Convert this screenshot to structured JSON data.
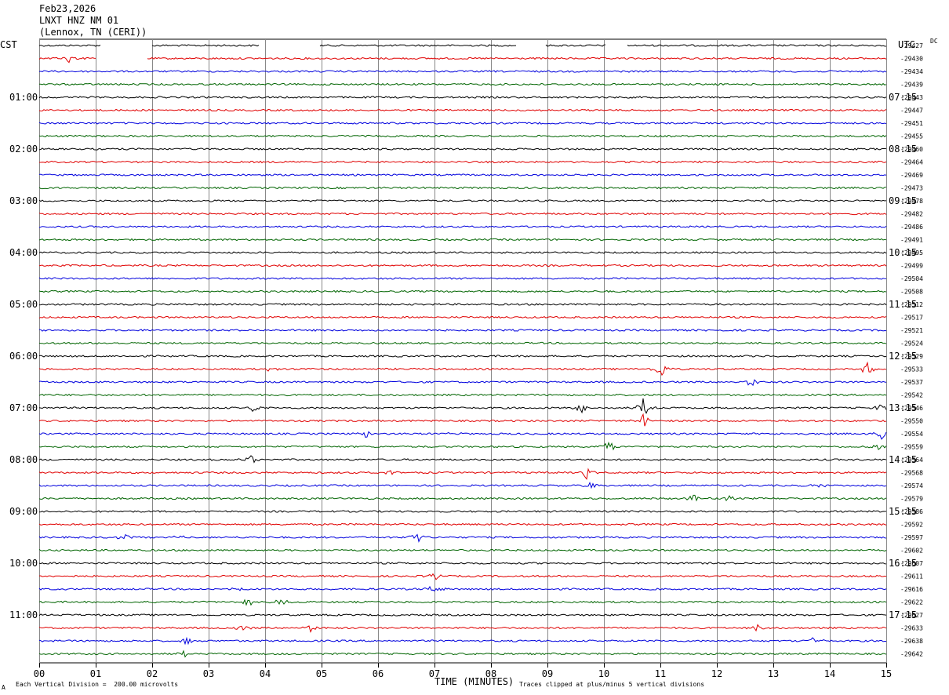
{
  "header": {
    "date": "Feb23,2026",
    "station": "LNXT HNZ NM 01",
    "location": "(Lennox, TN (CERI))"
  },
  "left_tz": "CST",
  "right_tz": "UTC",
  "dc_label": "DC",
  "footer": {
    "scale_note": "Each Vertical Division =  200.00 microvolts",
    "clip_note": "Traces clipped at plus/minus 5 vertical divisions",
    "corner_mark": "A"
  },
  "colors": {
    "trace_cycle": [
      "#000000",
      "#e00000",
      "#0000dd",
      "#006400"
    ],
    "grid": "#888888"
  },
  "chart_data": {
    "type": "line",
    "xlabel": "TIME (MINUTES)",
    "xlim": [
      0,
      15
    ],
    "x_ticks": [
      "00",
      "01",
      "02",
      "03",
      "04",
      "05",
      "06",
      "07",
      "08",
      "09",
      "10",
      "11",
      "12",
      "13",
      "14",
      "15"
    ],
    "left_hour_labels": [
      "01:00",
      "02:00",
      "03:00",
      "04:00",
      "05:00",
      "06:00",
      "07:00",
      "08:00",
      "09:00",
      "10:00",
      "11:00"
    ],
    "right_hour_labels": [
      "07:15",
      "08:15",
      "09:15",
      "10:15",
      "11:15",
      "12:15",
      "13:15",
      "14:15",
      "15:15",
      "16:15",
      "17:15"
    ],
    "dc_offsets": [
      "-29427",
      "-29430",
      "-29434",
      "-29439",
      "-29443",
      "-29447",
      "-29451",
      "-29455",
      "-29460",
      "-29464",
      "-29469",
      "-29473",
      "-29478",
      "-29482",
      "-29486",
      "-29491",
      "-29495",
      "-29499",
      "-29504",
      "-29508",
      "-29512",
      "-29517",
      "-29521",
      "-29524",
      "-29529",
      "-29533",
      "-29537",
      "-29542",
      "-29546",
      "-29550",
      "-29554",
      "-29559",
      "-29564",
      "-29568",
      "-29574",
      "-29579",
      "-29586",
      "-29592",
      "-29597",
      "-29602",
      "-29607",
      "-29611",
      "-29616",
      "-29622",
      "-29627",
      "-29633",
      "-29638",
      "-29642"
    ],
    "trace_count": 48
  }
}
